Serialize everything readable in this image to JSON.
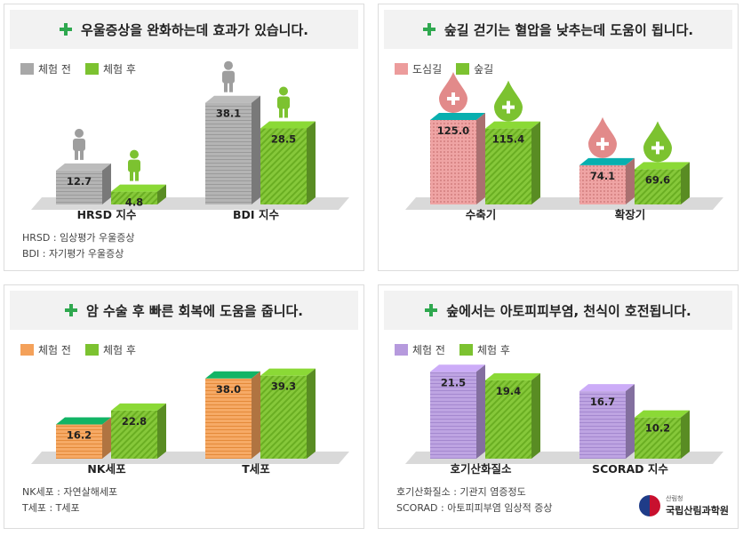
{
  "colors": {
    "gray": "#a8a8a8",
    "green": "#7cc230",
    "pink": "#ec9c9c",
    "orange": "#f4a15a",
    "purple": "#b69add"
  },
  "panels": [
    {
      "title": "우울증상을 완화하는데 효과가 있습니다.",
      "legend": [
        {
          "label": "체험 전",
          "color": "#a8a8a8"
        },
        {
          "label": "체험 후",
          "color": "#7cc230"
        }
      ],
      "notes": [
        "HRSD : 임상평가 우울증상",
        "BDI : 자기평가 우울증상"
      ],
      "icon": "person-icon"
    },
    {
      "title": "숲길 걷기는 혈압을 낮추는데 도움이 됩니다.",
      "legend": [
        {
          "label": "도심길",
          "color": "#ec9c9c"
        },
        {
          "label": "숲길",
          "color": "#7cc230"
        }
      ],
      "notes": [],
      "icon": "blood-drop-icon"
    },
    {
      "title": "암 수술 후 빠른 회복에 도움을 줍니다.",
      "legend": [
        {
          "label": "체험 전",
          "color": "#f4a15a"
        },
        {
          "label": "체험 후",
          "color": "#7cc230"
        }
      ],
      "notes": [
        "NK세포 : 자연살해세포",
        "T세포 : T세포"
      ],
      "icon": ""
    },
    {
      "title": "숲에서는 아토피피부염, 천식이 호전됩니다.",
      "legend": [
        {
          "label": "체험 전",
          "color": "#b69add"
        },
        {
          "label": "체험 후",
          "color": "#7cc230"
        }
      ],
      "notes": [
        "호기산화질소 : 기관지 염증정도",
        "SCORAD : 아토피피부염 임상적 증상"
      ],
      "icon": ""
    }
  ],
  "chart_data": [
    {
      "type": "bar",
      "title": "우울증상을 완화하는데 효과가 있습니다.",
      "categories": [
        "HRSD 지수",
        "BDI 지수"
      ],
      "series": [
        {
          "name": "체험 전",
          "values": [
            12.7,
            38.1
          ]
        },
        {
          "name": "체험 후",
          "values": [
            4.8,
            28.5
          ]
        }
      ]
    },
    {
      "type": "bar",
      "title": "숲길 걷기는 혈압을 낮추는데 도움이 됩니다.",
      "categories": [
        "수축기",
        "확장기"
      ],
      "series": [
        {
          "name": "도심길",
          "values": [
            125.0,
            74.1
          ]
        },
        {
          "name": "숲길",
          "values": [
            115.4,
            69.6
          ]
        }
      ]
    },
    {
      "type": "bar",
      "title": "암 수술 후 빠른 회복에 도움을 줍니다.",
      "categories": [
        "NK세포",
        "T세포"
      ],
      "series": [
        {
          "name": "체험 전",
          "values": [
            16.2,
            38.0
          ]
        },
        {
          "name": "체험 후",
          "values": [
            22.8,
            39.3
          ]
        }
      ]
    },
    {
      "type": "bar",
      "title": "숲에서는 아토피피부염, 천식이 호전됩니다.",
      "categories": [
        "호기산화질소",
        "SCORAD 지수"
      ],
      "series": [
        {
          "name": "체험 전",
          "values": [
            21.5,
            16.7
          ]
        },
        {
          "name": "체험 후",
          "values": [
            19.4,
            10.2
          ]
        }
      ]
    }
  ],
  "logo": {
    "top": "산림청",
    "name": "국립산림과학원"
  }
}
